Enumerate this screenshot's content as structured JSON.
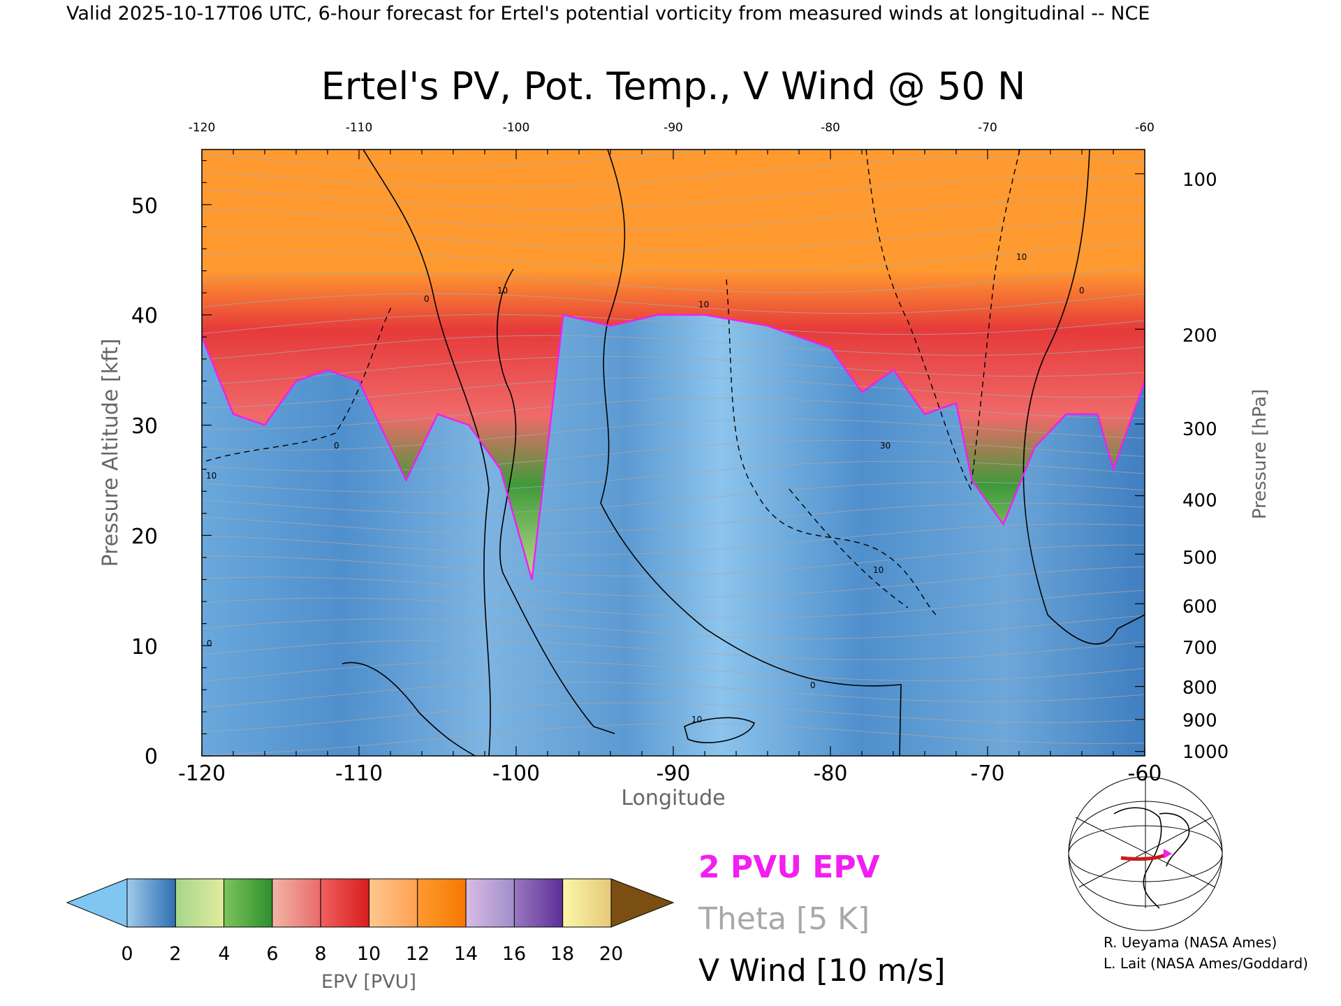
{
  "header": {
    "valid_line": "Valid 2025-10-17T06 UTC, 6-hour forecast for Ertel's potential vorticity from measured winds at longitudinal -- NCE"
  },
  "chart_data": {
    "type": "heatmap",
    "title": "Ertel's PV, Pot. Temp., V Wind @ 50 N",
    "xlabel": "Longitude",
    "ylabel_left": "Pressure Altitude [kft]",
    "ylabel_right": "Pressure [hPa]",
    "xlim": [
      -120,
      -60
    ],
    "ylim": [
      0,
      55
    ],
    "x_ticks": [
      "-120",
      "-110",
      "-100",
      "-90",
      "-80",
      "-70",
      "-60"
    ],
    "x_ticks_top": [
      "-120",
      "-110",
      "-100",
      "-90",
      "-80",
      "-70",
      "-60"
    ],
    "y_ticks": [
      "0",
      "10",
      "20",
      "30",
      "40",
      "50"
    ],
    "pressure_ticks": [
      {
        "label": "100",
        "kft": 52.8
      },
      {
        "label": "200",
        "kft": 38.7
      },
      {
        "label": "300",
        "kft": 30.1
      },
      {
        "label": "400",
        "kft": 23.6
      },
      {
        "label": "500",
        "kft": 18.3
      },
      {
        "label": "600",
        "kft": 13.8
      },
      {
        "label": "700",
        "kft": 9.9
      },
      {
        "label": "800",
        "kft": 6.3
      },
      {
        "label": "900",
        "kft": 3.3
      },
      {
        "label": "1000",
        "kft": 0.4
      }
    ],
    "tropopause_2pvu_kft": [
      {
        "lon": -120,
        "kft": 38
      },
      {
        "lon": -118,
        "kft": 31
      },
      {
        "lon": -116,
        "kft": 30
      },
      {
        "lon": -114,
        "kft": 34
      },
      {
        "lon": -112,
        "kft": 35
      },
      {
        "lon": -110,
        "kft": 34
      },
      {
        "lon": -108,
        "kft": 28
      },
      {
        "lon": -107,
        "kft": 25
      },
      {
        "lon": -105,
        "kft": 31
      },
      {
        "lon": -103,
        "kft": 30
      },
      {
        "lon": -101,
        "kft": 26
      },
      {
        "lon": -99,
        "kft": 16
      },
      {
        "lon": -97,
        "kft": 40
      },
      {
        "lon": -94,
        "kft": 39
      },
      {
        "lon": -91,
        "kft": 40
      },
      {
        "lon": -88,
        "kft": 40
      },
      {
        "lon": -84,
        "kft": 39
      },
      {
        "lon": -80,
        "kft": 37
      },
      {
        "lon": -78,
        "kft": 33
      },
      {
        "lon": -76,
        "kft": 35
      },
      {
        "lon": -74,
        "kft": 31
      },
      {
        "lon": -72,
        "kft": 32
      },
      {
        "lon": -71,
        "kft": 25
      },
      {
        "lon": -69,
        "kft": 21
      },
      {
        "lon": -67,
        "kft": 28
      },
      {
        "lon": -65,
        "kft": 31
      },
      {
        "lon": -63,
        "kft": 31
      },
      {
        "lon": -62,
        "kft": 26
      },
      {
        "lon": -60,
        "kft": 34
      }
    ],
    "colorbar": {
      "label": "EPV [PVU]",
      "ticks": [
        "0",
        "2",
        "4",
        "6",
        "8",
        "10",
        "12",
        "14",
        "16",
        "18",
        "20"
      ],
      "levels": [
        0,
        2,
        4,
        6,
        8,
        10,
        12,
        14,
        16,
        18,
        20
      ],
      "underflow_color": "#7fc6f2",
      "overflow_color": "#7b4e12",
      "segment_colors": [
        [
          "#9fcbea",
          "#2e6eb2"
        ],
        [
          "#a6d68b",
          "#e2ec9c"
        ],
        [
          "#7cc45c",
          "#2e8e2e"
        ],
        [
          "#f2b6a6",
          "#e86a6a"
        ],
        [
          "#f06060",
          "#d81c1c"
        ],
        [
          "#ffc890",
          "#ff9f50"
        ],
        [
          "#ff9a30",
          "#f57800"
        ],
        [
          "#d8bce6",
          "#a08ec8"
        ],
        [
          "#9a78c0",
          "#5c2e96"
        ],
        [
          "#fbf6a8",
          "#e6c87a"
        ]
      ]
    },
    "series": [
      {
        "name": "2 PVU EPV",
        "color": "#f21ef2"
      },
      {
        "name": "Theta [5 K]",
        "color": "#a8a8a8"
      },
      {
        "name": "V Wind [10 m/s]",
        "color": "#000000"
      }
    ],
    "contour_labels": [
      "10",
      "0",
      "0",
      "10",
      "30",
      "0",
      "10",
      "10",
      "0",
      "10",
      "10",
      "0"
    ]
  },
  "inset_map": {
    "icon": "globe-map-icon",
    "path_color": "#cc1a1a",
    "marker_color": "#f21ef2"
  },
  "credits": [
    "R. Ueyama (NASA Ames)",
    "L. Lait (NASA Ames/Goddard)"
  ]
}
